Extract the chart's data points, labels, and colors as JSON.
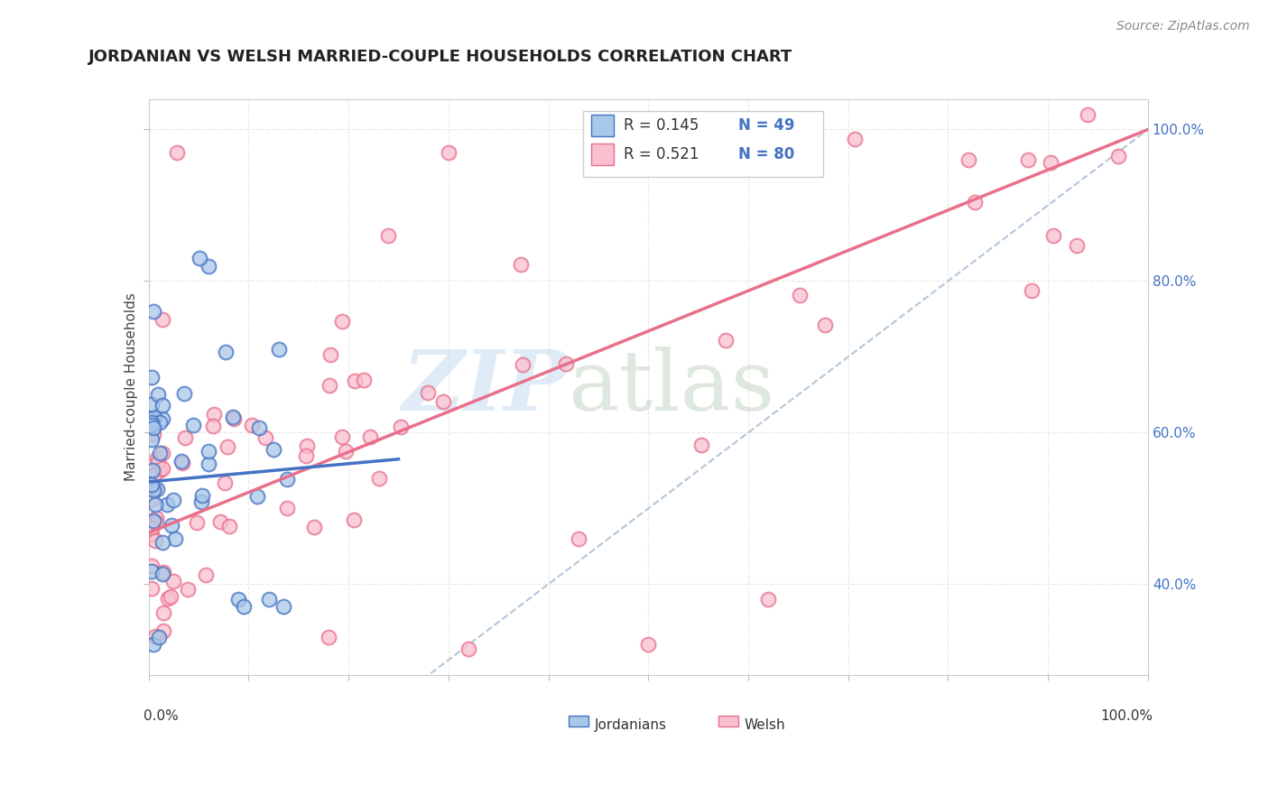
{
  "title": "JORDANIAN VS WELSH MARRIED-COUPLE HOUSEHOLDS CORRELATION CHART",
  "source": "Source: ZipAtlas.com",
  "ylabel": "Married-couple Households",
  "color_jordanian": "#A8C8E8",
  "color_welsh": "#F9C0CF",
  "color_jordanian_line": "#4472C4",
  "color_welsh_line": "#E8708A",
  "color_diagonal": "#A0B8D0",
  "background_color": "#FFFFFF",
  "xlim": [
    0.0,
    1.0
  ],
  "ylim": [
    0.28,
    1.04
  ],
  "ytick_positions": [
    0.4,
    0.6,
    0.8,
    1.0
  ],
  "ytick_labels_right": [
    "40.0%",
    "60.0%",
    "80.0%",
    "100.0%"
  ],
  "legend_text": [
    {
      "R": "R = 0.145",
      "N": "N = 49",
      "color": "#A8C8E8",
      "ec": "#4472C4"
    },
    {
      "R": "R = 0.521",
      "N": "N = 80",
      "color": "#F9C0CF",
      "ec": "#E8708A"
    }
  ],
  "welsh_line": {
    "x0": 0.0,
    "y0": 0.468,
    "x1": 1.0,
    "y1": 1.0
  },
  "jordanian_line": {
    "x0": 0.0,
    "y0": 0.535,
    "x1": 0.25,
    "y1": 0.565
  }
}
